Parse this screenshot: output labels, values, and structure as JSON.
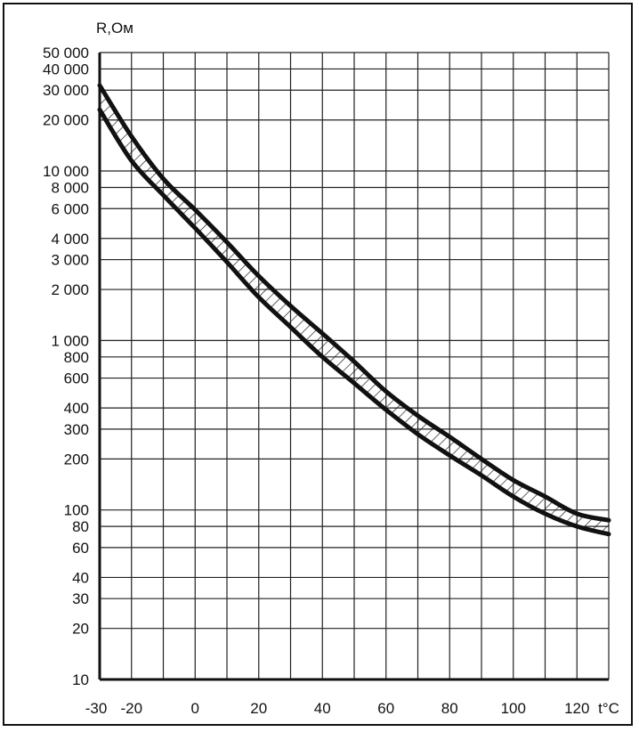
{
  "chart_data": {
    "type": "area",
    "ylabel": "R,Ом",
    "xlabel": "t°C",
    "y_scale": "log",
    "grid": true,
    "xlim": [
      -30,
      130
    ],
    "ylim": [
      10,
      50000
    ],
    "x_ticks": [
      {
        "value": -30,
        "label": "-30"
      },
      {
        "value": -20,
        "label": "-20"
      },
      {
        "value": 0,
        "label": "0"
      },
      {
        "value": 20,
        "label": "20"
      },
      {
        "value": 40,
        "label": "40"
      },
      {
        "value": 60,
        "label": "60"
      },
      {
        "value": 80,
        "label": "80"
      },
      {
        "value": 100,
        "label": "100"
      },
      {
        "value": 120,
        "label": "120"
      }
    ],
    "y_ticks": [
      {
        "value": 50000,
        "label": "50 000"
      },
      {
        "value": 40000,
        "label": "40 000"
      },
      {
        "value": 30000,
        "label": "30 000"
      },
      {
        "value": 20000,
        "label": "20 000"
      },
      {
        "value": 10000,
        "label": "10 000"
      },
      {
        "value": 8000,
        "label": "8 000"
      },
      {
        "value": 6000,
        "label": "6 000"
      },
      {
        "value": 4000,
        "label": "4 000"
      },
      {
        "value": 3000,
        "label": "3 000"
      },
      {
        "value": 2000,
        "label": "2 000"
      },
      {
        "value": 1000,
        "label": "1 000"
      },
      {
        "value": 800,
        "label": "800"
      },
      {
        "value": 600,
        "label": "600"
      },
      {
        "value": 400,
        "label": "400"
      },
      {
        "value": 300,
        "label": "300"
      },
      {
        "value": 200,
        "label": "200"
      },
      {
        "value": 100,
        "label": "100"
      },
      {
        "value": 80,
        "label": "80"
      },
      {
        "value": 60,
        "label": "60"
      },
      {
        "value": 40,
        "label": "40"
      },
      {
        "value": 30,
        "label": "30"
      },
      {
        "value": 20,
        "label": "20"
      },
      {
        "value": 10,
        "label": "10"
      }
    ],
    "x_gridlines": [
      -30,
      -20,
      -10,
      0,
      10,
      20,
      30,
      40,
      50,
      60,
      70,
      80,
      90,
      100,
      110,
      120,
      130
    ],
    "y_gridlines": [
      50000,
      40000,
      30000,
      20000,
      10000,
      8000,
      6000,
      4000,
      3000,
      2000,
      1000,
      800,
      600,
      400,
      300,
      200,
      100,
      80,
      60,
      40,
      30,
      20,
      10
    ],
    "series": [
      {
        "x": [
          -30,
          -20,
          -10,
          0,
          10,
          20,
          30,
          40,
          50,
          60,
          70,
          80,
          90,
          100,
          110,
          120,
          130
        ],
        "values": [
          32000,
          16000,
          9000,
          5900,
          3800,
          2400,
          1600,
          1100,
          750,
          500,
          360,
          270,
          200,
          150,
          120,
          95,
          87
        ]
      },
      {
        "x": [
          -30,
          -20,
          -10,
          0,
          10,
          20,
          30,
          40,
          50,
          60,
          70,
          80,
          90,
          100,
          110,
          120,
          130
        ],
        "values": [
          23000,
          11500,
          7200,
          4600,
          2900,
          1800,
          1200,
          800,
          560,
          390,
          280,
          210,
          160,
          120,
          95,
          80,
          72
        ]
      }
    ],
    "colors": {
      "line": "#111111",
      "grid": "#222222",
      "hatch": "#111111"
    }
  }
}
